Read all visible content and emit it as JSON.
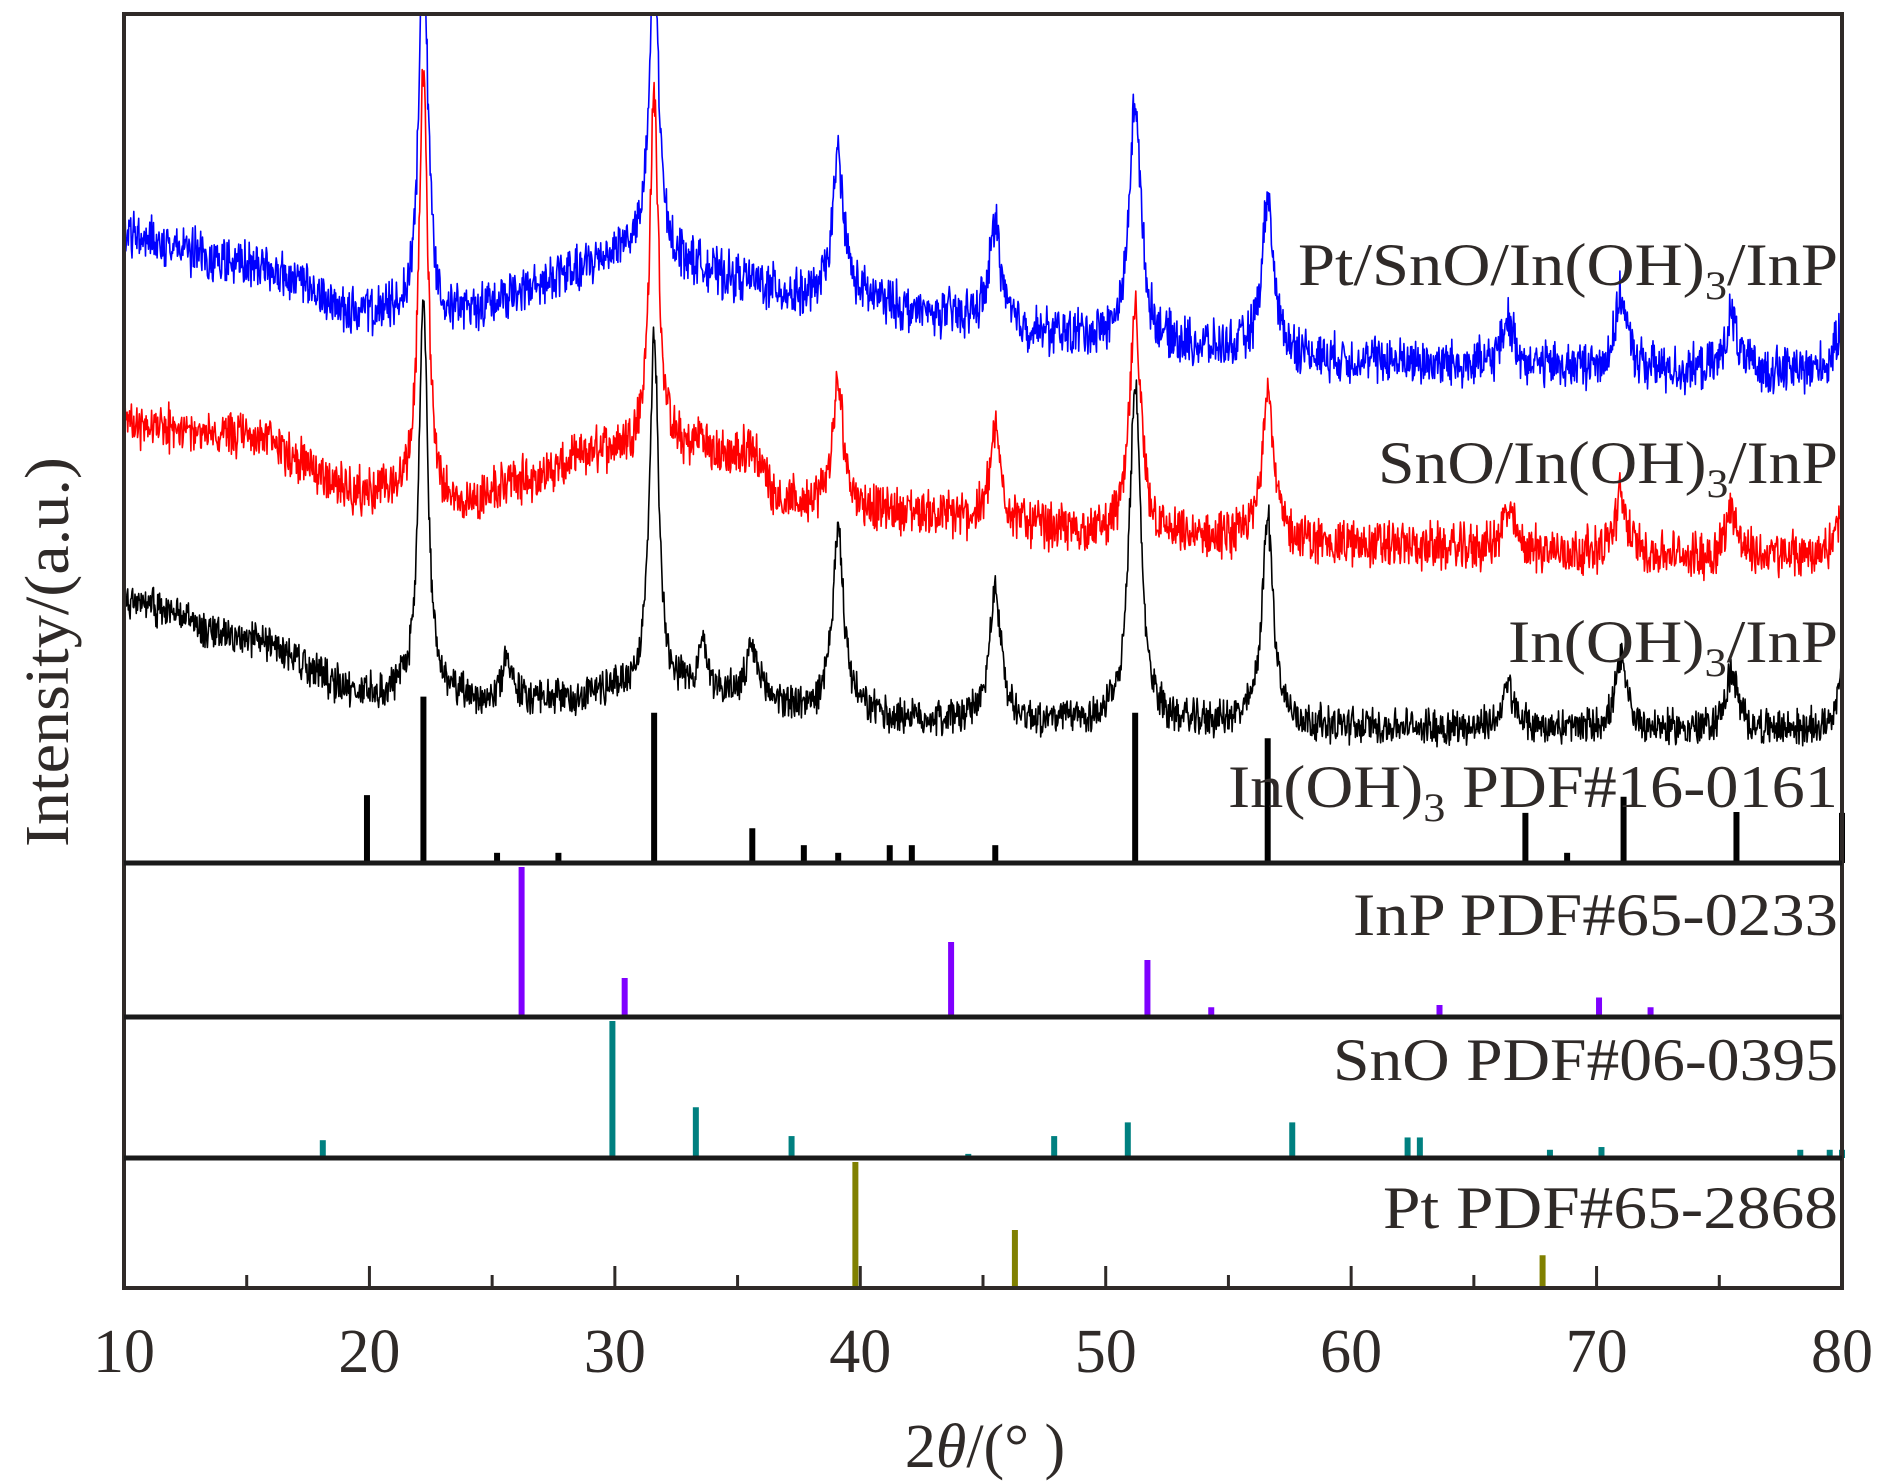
{
  "chart_data": {
    "type": "line",
    "title": "",
    "xlabel": "2θ/(° )",
    "xlabel_parts": {
      "prefix": "2",
      "symbol": "θ",
      "suffix": "/(° )"
    },
    "ylabel": "Intensity/(a.u.)",
    "xlim": [
      10,
      80
    ],
    "x_ticks": [
      10,
      20,
      30,
      40,
      50,
      60,
      70,
      80
    ],
    "x_tick_labels": [
      "10",
      "20",
      "30",
      "40",
      "50",
      "60",
      "70",
      "80"
    ],
    "x_minor_ticks": [
      15,
      25,
      35,
      45,
      55,
      65,
      75
    ],
    "y_ticks_shown": false,
    "grid": false,
    "legend": "inline labels at right",
    "intensity_units": "a.u. (stacked, offset 0-100 scale)",
    "series": [
      {
        "name": "Pt/SnO/In(OH)3/InP",
        "label_main": "Pt/SnO/In(OH)",
        "label_sub": "3",
        "label_tail": "/InP",
        "color": "#0000ff",
        "background": [
          [
            10,
            74
          ],
          [
            15,
            70.4
          ],
          [
            20,
            64.5
          ],
          [
            23,
            64
          ],
          [
            26,
            66.8
          ],
          [
            28,
            69.3
          ],
          [
            30.5,
            72.2
          ],
          [
            32.5,
            70.8
          ],
          [
            35,
            68.7
          ],
          [
            38,
            66.3
          ],
          [
            40,
            66.3
          ],
          [
            43,
            64.5
          ],
          [
            48,
            62.2
          ],
          [
            52,
            61
          ],
          [
            56,
            60.2
          ],
          [
            60,
            59.2
          ],
          [
            65,
            58.7
          ],
          [
            70,
            58.3
          ],
          [
            75,
            57.8
          ],
          [
            80,
            58.1
          ]
        ],
        "peaks": [
          [
            22.2,
            45
          ],
          [
            31.6,
            36
          ],
          [
            39.1,
            17
          ],
          [
            45.5,
            12
          ],
          [
            51.2,
            29
          ],
          [
            56.6,
            18
          ],
          [
            66.4,
            5.3
          ],
          [
            71.0,
            8.4
          ],
          [
            75.5,
            6.7
          ],
          [
            80.0,
            5
          ]
        ],
        "noise": 2.2
      },
      {
        "name": "SnO/In(OH)3/InP",
        "label_main": "SnO/In(OH)",
        "label_sub": "3",
        "label_tail": "/InP",
        "color": "#ff0000",
        "background": [
          [
            10,
            51.6
          ],
          [
            15,
            50.2
          ],
          [
            20,
            43.3
          ],
          [
            23.5,
            41.6
          ],
          [
            26,
            44.8
          ],
          [
            30,
            48.6
          ],
          [
            33,
            48.1
          ],
          [
            35.5,
            47.2
          ],
          [
            37,
            42.2
          ],
          [
            42,
            41.2
          ],
          [
            46,
            39.8
          ],
          [
            50,
            38.6
          ],
          [
            54,
            38
          ],
          [
            60,
            37.5
          ],
          [
            66,
            36.9
          ],
          [
            70,
            36.5
          ],
          [
            75,
            35.9
          ],
          [
            80,
            36.3
          ]
        ],
        "peaks": [
          [
            22.2,
            51
          ],
          [
            31.6,
            42
          ],
          [
            33.5,
            2
          ],
          [
            35.5,
            2
          ],
          [
            39.1,
            14
          ],
          [
            45.5,
            10.8
          ],
          [
            51.2,
            26
          ],
          [
            56.6,
            18.5
          ],
          [
            66.4,
            4.7
          ],
          [
            71.0,
            6.8
          ],
          [
            75.5,
            6
          ],
          [
            80.0,
            4.7
          ]
        ],
        "noise": 2.2
      },
      {
        "name": "In(OH)3/InP",
        "label_main": "In(OH)",
        "label_sub": "3",
        "label_tail": "/InP",
        "color": "#000000",
        "background": [
          [
            10,
            31
          ],
          [
            15,
            26.3
          ],
          [
            20,
            19.8
          ],
          [
            24,
            19.2
          ],
          [
            28,
            19.2
          ],
          [
            30,
            20.4
          ],
          [
            33,
            20.4
          ],
          [
            36,
            19.2
          ],
          [
            38,
            17.8
          ],
          [
            43,
            16.8
          ],
          [
            48,
            16.6
          ],
          [
            55,
            16.3
          ],
          [
            60,
            16
          ],
          [
            66,
            15.9
          ],
          [
            72,
            15.7
          ],
          [
            80,
            15.7
          ]
        ],
        "peaks": [
          [
            22.2,
            47
          ],
          [
            25.6,
            5
          ],
          [
            31.6,
            42
          ],
          [
            33.6,
            5
          ],
          [
            35.6,
            5.5
          ],
          [
            39.1,
            21
          ],
          [
            45.5,
            15.4
          ],
          [
            51.2,
            39.7
          ],
          [
            56.6,
            24.3
          ],
          [
            66.4,
            4.8
          ],
          [
            71.0,
            8
          ],
          [
            75.5,
            6.7
          ],
          [
            80.0,
            6
          ]
        ],
        "noise": 1.7
      }
    ],
    "reference_patterns": [
      {
        "name": "In(OH)3 PDF#16-0161",
        "label_main": "In(OH)",
        "label_sub": "3",
        "label_tail": " PDF#16-0161",
        "color": "#000000",
        "panel": "main",
        "sticks": [
          [
            19.9,
            8
          ],
          [
            22.2,
            19.6
          ],
          [
            25.2,
            1.2
          ],
          [
            27.7,
            1.2
          ],
          [
            31.6,
            17.7
          ],
          [
            35.6,
            4.1
          ],
          [
            37.7,
            2.1
          ],
          [
            39.1,
            1.2
          ],
          [
            41.2,
            2.1
          ],
          [
            42.1,
            2.1
          ],
          [
            45.5,
            2.1
          ],
          [
            51.2,
            17.7
          ],
          [
            56.6,
            14.7
          ],
          [
            67.1,
            5.9
          ],
          [
            68.8,
            1.2
          ],
          [
            71.1,
            7.8
          ],
          [
            75.7,
            6
          ],
          [
            80.0,
            5.9
          ]
        ]
      },
      {
        "name": "InP PDF#65-0233",
        "label_main": "InP PDF#65-0233",
        "label_sub": "",
        "label_tail": "",
        "color": "#7f00ff",
        "panel": "InP",
        "sticks": [
          [
            26.2,
            100
          ],
          [
            30.4,
            26
          ],
          [
            43.7,
            50
          ],
          [
            51.7,
            38
          ],
          [
            54.3,
            6.5
          ],
          [
            63.6,
            8
          ],
          [
            70.1,
            13
          ],
          [
            72.2,
            6.5
          ]
        ]
      },
      {
        "name": "SnO PDF#06-0395",
        "label_main": "SnO PDF#06-0395",
        "label_sub": "",
        "label_tail": "",
        "color": "#008080",
        "panel": "SnO",
        "sticks": [
          [
            18.1,
            13
          ],
          [
            29.9,
            100
          ],
          [
            33.3,
            37
          ],
          [
            37.2,
            16
          ],
          [
            44.4,
            3
          ],
          [
            47.9,
            16
          ],
          [
            50.9,
            26
          ],
          [
            57.6,
            26
          ],
          [
            62.3,
            15
          ],
          [
            62.8,
            15
          ],
          [
            68.1,
            6
          ],
          [
            70.2,
            8
          ],
          [
            78.3,
            6
          ],
          [
            79.5,
            6
          ],
          [
            80.0,
            6
          ]
        ]
      },
      {
        "name": "Pt PDF#65-2868",
        "label_main": "Pt PDF#65-2868",
        "label_sub": "",
        "label_tail": "",
        "color": "#808000",
        "panel": "Pt",
        "sticks": [
          [
            39.8,
            100
          ],
          [
            46.3,
            46
          ],
          [
            67.8,
            26
          ]
        ]
      }
    ]
  }
}
